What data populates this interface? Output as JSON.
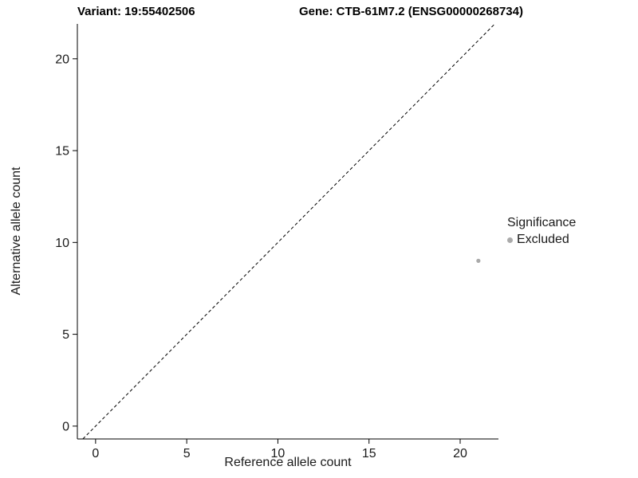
{
  "chart_data": {
    "type": "scatter",
    "title_left": "Variant: 19:55402506",
    "title_right": "Gene: CTB-61M7.2 (ENSG00000268734)",
    "xlabel": "Reference allele count",
    "ylabel": "Alternative allele count",
    "xlim": [
      -1.0,
      22.1
    ],
    "ylim": [
      -0.7,
      21.9
    ],
    "xticks": [
      0,
      5,
      10,
      15,
      20
    ],
    "yticks": [
      0,
      5,
      10,
      15,
      20
    ],
    "identity_line": {
      "style": "dashed",
      "color": "#000000",
      "slope": 1,
      "intercept": 0
    },
    "series": [
      {
        "name": "Excluded",
        "color": "#aaaaaa",
        "points": [
          {
            "x": 21,
            "y": 9
          }
        ]
      }
    ],
    "legend": {
      "title": "Significance",
      "entries": [
        {
          "label": "Excluded",
          "color": "#aaaaaa"
        }
      ]
    },
    "panel": {
      "background": "#ffffff",
      "axis_color": "#000000",
      "grid": false
    }
  }
}
